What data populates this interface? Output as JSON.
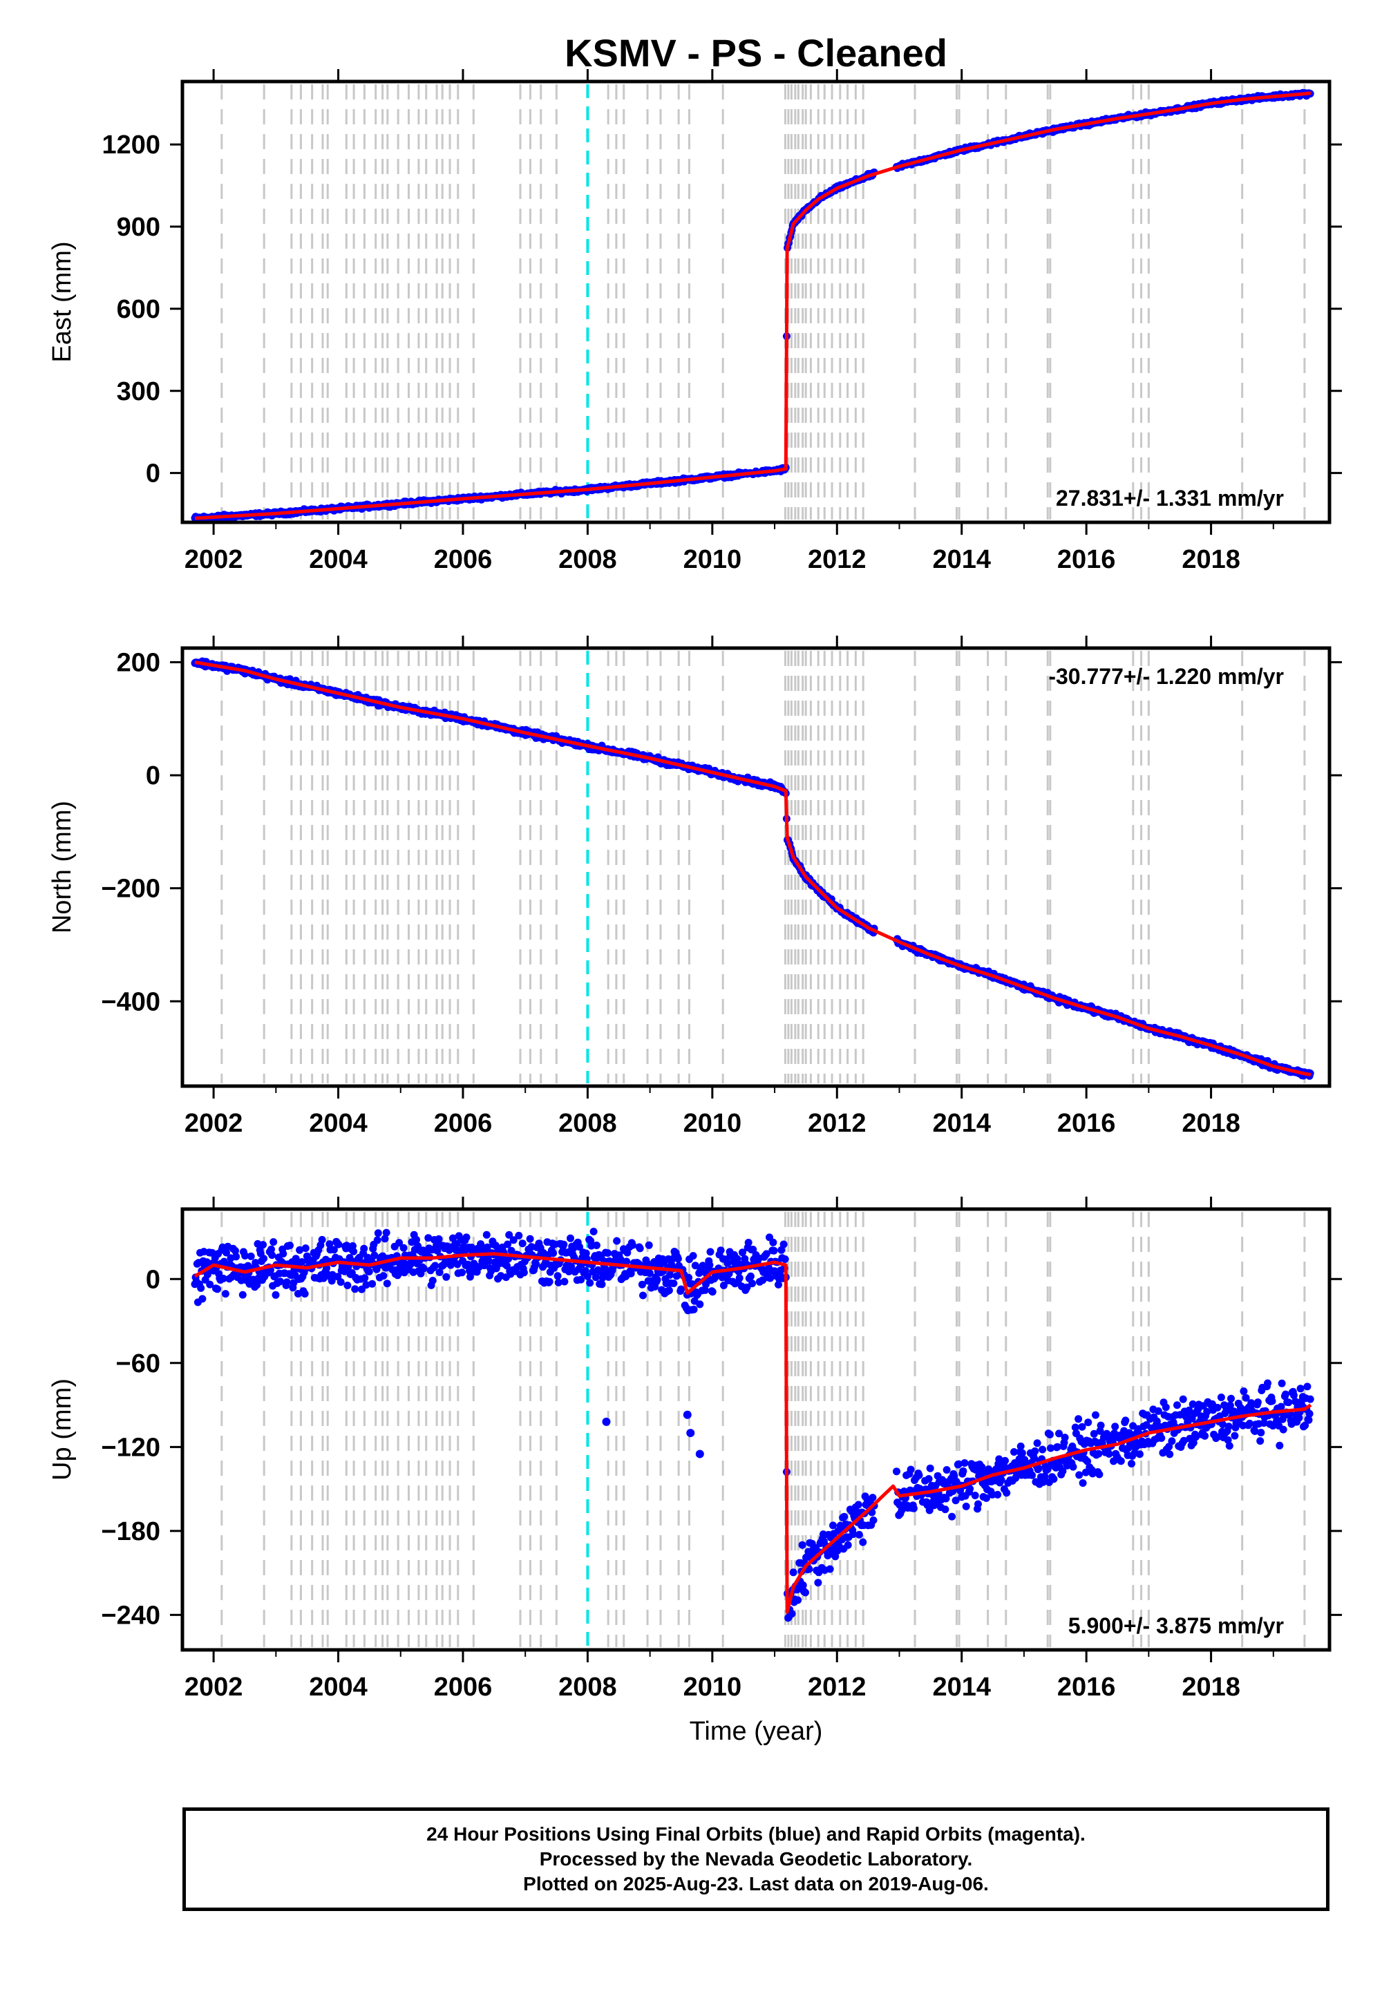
{
  "chart_data": {
    "title": "KSMV  - PS - Cleaned",
    "xlabel": "Time (year)",
    "xlim": [
      2001.5,
      2019.9
    ],
    "x_ticks": [
      2002,
      2004,
      2006,
      2008,
      2010,
      2012,
      2014,
      2016,
      2018
    ],
    "colors": {
      "final_orbits": "#0000ff",
      "rapid_orbits": "#ff00ff",
      "model": "#ff0000",
      "equipment_change": "#c8c8c8",
      "highlight_event": "#00e5e5"
    },
    "equipment_changes": [
      2002.13,
      2002.81,
      2003.25,
      2003.4,
      2003.58,
      2003.75,
      2003.83,
      2004.13,
      2004.25,
      2004.42,
      2004.6,
      2004.71,
      2004.79,
      2004.96,
      2005.13,
      2005.29,
      2005.41,
      2005.58,
      2005.67,
      2005.79,
      2005.92,
      2006.17,
      2006.92,
      2007.08,
      2007.25,
      2007.5,
      2008.33,
      2008.46,
      2008.58,
      2008.96,
      2009.17,
      2009.46,
      2009.63,
      2010.17,
      2011.17,
      2011.22,
      2011.27,
      2011.33,
      2011.38,
      2011.45,
      2011.5,
      2011.58,
      2011.7,
      2011.8,
      2011.92,
      2012.05,
      2012.17,
      2012.3,
      2012.42,
      2013.25,
      2013.92,
      2013.96,
      2014.42,
      2014.71,
      2015.38,
      2015.42,
      2016.75,
      2016.88,
      2017.0,
      2018.5,
      2019.5
    ],
    "highlight_event": 2008.0,
    "panels": [
      {
        "type": "scatter",
        "ylabel": "East (mm)",
        "ylim": [
          -180,
          1430
        ],
        "y_ticks": [
          0,
          300,
          600,
          900,
          1200
        ],
        "y_tick_labels": [
          "0",
          "300",
          "600",
          "900",
          "1200"
        ],
        "rate_label": "27.831+/- 1.331 mm/yr",
        "series": [
          {
            "x": [
              2001.7,
              2003.0,
              2004.0,
              2005.0,
              2006.0,
              2007.0,
              2008.0,
              2009.0,
              2010.0,
              2011.0,
              2011.18,
              2011.2,
              2011.3,
              2011.5,
              2011.7,
              2012.0,
              2012.5,
              2013.0,
              2013.5,
              2014.0,
              2014.5,
              2015.0,
              2015.5,
              2016.0,
              2016.5,
              2017.0,
              2017.5,
              2018.0,
              2018.5,
              2019.0,
              2019.5,
              2019.6
            ],
            "values": [
              -165,
              -148,
              -130,
              -112,
              -94,
              -77,
              -60,
              -38,
              -15,
              8,
              15,
              820,
              910,
              960,
              1000,
              1040,
              1085,
              1120,
              1150,
              1180,
              1205,
              1230,
              1255,
              1275,
              1295,
              1312,
              1330,
              1350,
              1365,
              1375,
              1385,
              1388
            ]
          }
        ]
      },
      {
        "type": "scatter",
        "ylabel": "North (mm)",
        "ylim": [
          -550,
          225
        ],
        "y_ticks": [
          -400,
          -200,
          0,
          200
        ],
        "y_tick_labels": [
          "−400",
          "−200",
          "0",
          "200"
        ],
        "rate_label": "-30.777+/- 1.220 mm/yr",
        "series": [
          {
            "x": [
              2001.7,
              2002.5,
              2003.0,
              2004.0,
              2005.0,
              2006.0,
              2007.0,
              2008.0,
              2009.0,
              2010.0,
              2011.0,
              2011.18,
              2011.2,
              2011.3,
              2011.5,
              2012.0,
              2012.5,
              2013.0,
              2013.5,
              2014.0,
              2014.5,
              2015.0,
              2015.5,
              2016.0,
              2016.5,
              2017.0,
              2017.5,
              2018.0,
              2018.5,
              2019.0,
              2019.5,
              2019.6
            ],
            "values": [
              200,
              185,
              170,
              145,
              120,
              100,
              75,
              52,
              30,
              5,
              -20,
              -28,
              -110,
              -145,
              -180,
              -235,
              -270,
              -295,
              -318,
              -338,
              -355,
              -375,
              -395,
              -412,
              -428,
              -448,
              -462,
              -478,
              -495,
              -515,
              -528,
              -530
            ]
          }
        ]
      },
      {
        "type": "scatter",
        "ylabel": "Up (mm)",
        "ylim": [
          -265,
          50
        ],
        "y_ticks": [
          -240,
          -180,
          -120,
          -60,
          0
        ],
        "y_tick_labels": [
          "−240",
          "−180",
          "−120",
          "−60",
          "0"
        ],
        "rate_label": "5.900+/- 3.875 mm/yr",
        "outliers": [
          {
            "x": 2008.3,
            "y": -102
          },
          {
            "x": 2009.6,
            "y": -97
          },
          {
            "x": 2009.65,
            "y": -110
          },
          {
            "x": 2009.8,
            "y": -125
          }
        ],
        "series": [
          {
            "x": [
              2001.7,
              2002.0,
              2002.5,
              2003.0,
              2003.5,
              2004.0,
              2004.5,
              2005.0,
              2005.5,
              2006.0,
              2006.5,
              2007.0,
              2007.5,
              2008.0,
              2008.5,
              2009.0,
              2009.5,
              2009.6,
              2010.0,
              2010.5,
              2011.0,
              2011.18,
              2011.2,
              2011.3,
              2011.5,
              2012.0,
              2012.5,
              2012.9,
              2013.0,
              2013.5,
              2014.0,
              2014.5,
              2015.0,
              2015.5,
              2016.0,
              2016.5,
              2017.0,
              2017.5,
              2018.0,
              2018.5,
              2019.0,
              2019.5,
              2019.6
            ],
            "values": [
              2,
              10,
              5,
              10,
              8,
              12,
              10,
              15,
              15,
              17,
              18,
              16,
              14,
              12,
              10,
              8,
              6,
              -10,
              5,
              8,
              12,
              10,
              -238,
              -220,
              -205,
              -185,
              -165,
              -148,
              -155,
              -152,
              -148,
              -140,
              -135,
              -128,
              -122,
              -118,
              -110,
              -106,
              -102,
              -98,
              -95,
              -93,
              -90
            ]
          }
        ]
      }
    ]
  },
  "footer": {
    "line1": "24 Hour Positions Using Final Orbits (blue) and Rapid Orbits (magenta).",
    "line2": "Processed by the Nevada Geodetic Laboratory.",
    "line3": "Plotted on 2025-Aug-23. Last data on 2019-Aug-06."
  }
}
